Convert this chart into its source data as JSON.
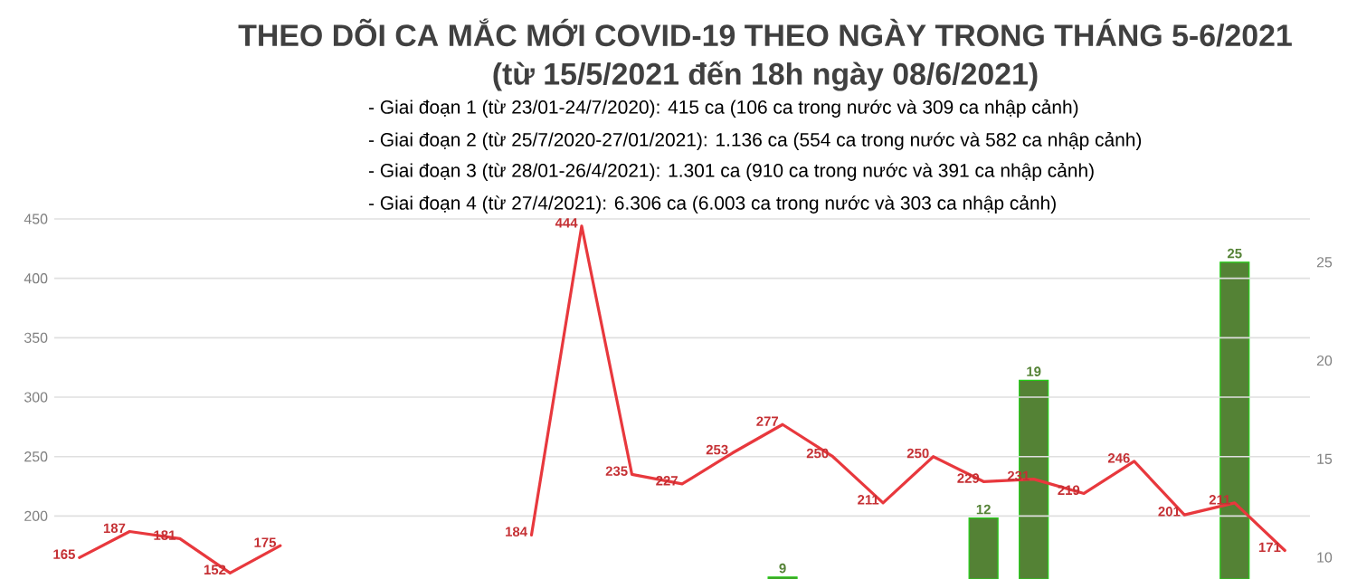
{
  "chart_data": {
    "type": "line",
    "title": "THEO DÕI CA MẮC MỚI COVID-19 THEO NGÀY TRONG THÁNG 5-6/2021",
    "subtitle": "(từ 15/5/2021 đến 18h ngày 08/6/2021)",
    "annotations": [
      "- Giai đoạn 1 (từ 23/01-24/7/2020): 415 ca (106 ca trong nước và 309 ca nhập cảnh)",
      "- Giai đoạn 2 (từ 25/7/2020-27/01/2021): 1.136 ca (554 ca trong nước và 582 ca nhập cảnh)",
      "- Giai đoạn 3 (từ 28/01-26/4/2021): 1.301 ca (910 ca trong nước và 391 ca nhập cảnh)",
      "- Giai đoạn 4 (từ 27/4/2021): 6.306 ca (6.003 ca trong nước và 303 ca nhập cảnh)"
    ],
    "categories": [
      null,
      null,
      null,
      null,
      null,
      null,
      null,
      null,
      null,
      null,
      null,
      null,
      null,
      null,
      null,
      null,
      null,
      null,
      null,
      null,
      null,
      null,
      null,
      null,
      null
    ],
    "series": [
      {
        "type": "bar",
        "axis": "y2",
        "color": "#548235",
        "values": [
          null,
          null,
          null,
          null,
          null,
          null,
          null,
          null,
          null,
          null,
          null,
          null,
          null,
          null,
          9,
          null,
          null,
          null,
          12,
          19,
          null,
          null,
          null,
          25,
          null
        ]
      },
      {
        "color": "#e8383d",
        "values": [
          165,
          187,
          181,
          152,
          175,
          null,
          null,
          null,
          null,
          null,
          null,
          null,
          null,
          null,
          null,
          null,
          null,
          null,
          null,
          null,
          null,
          null,
          null,
          null,
          null
        ]
      },
      {
        "color": "#e8383d",
        "values": [
          null,
          null,
          null,
          null,
          null,
          null,
          null,
          null,
          null,
          184,
          444,
          235,
          227,
          253,
          277,
          250,
          211,
          250,
          229,
          231,
          219,
          246,
          201,
          211,
          171
        ]
      }
    ],
    "ylim": [
      147,
      450
    ],
    "yticks": [
      200,
      250,
      300,
      350,
      400,
      450
    ],
    "y2lim": [
      8.9,
      27.2
    ],
    "y2ticks": [
      10,
      15,
      20,
      25
    ],
    "grid": "y",
    "data_labels": true,
    "marker": "none",
    "line_style": "solid"
  }
}
